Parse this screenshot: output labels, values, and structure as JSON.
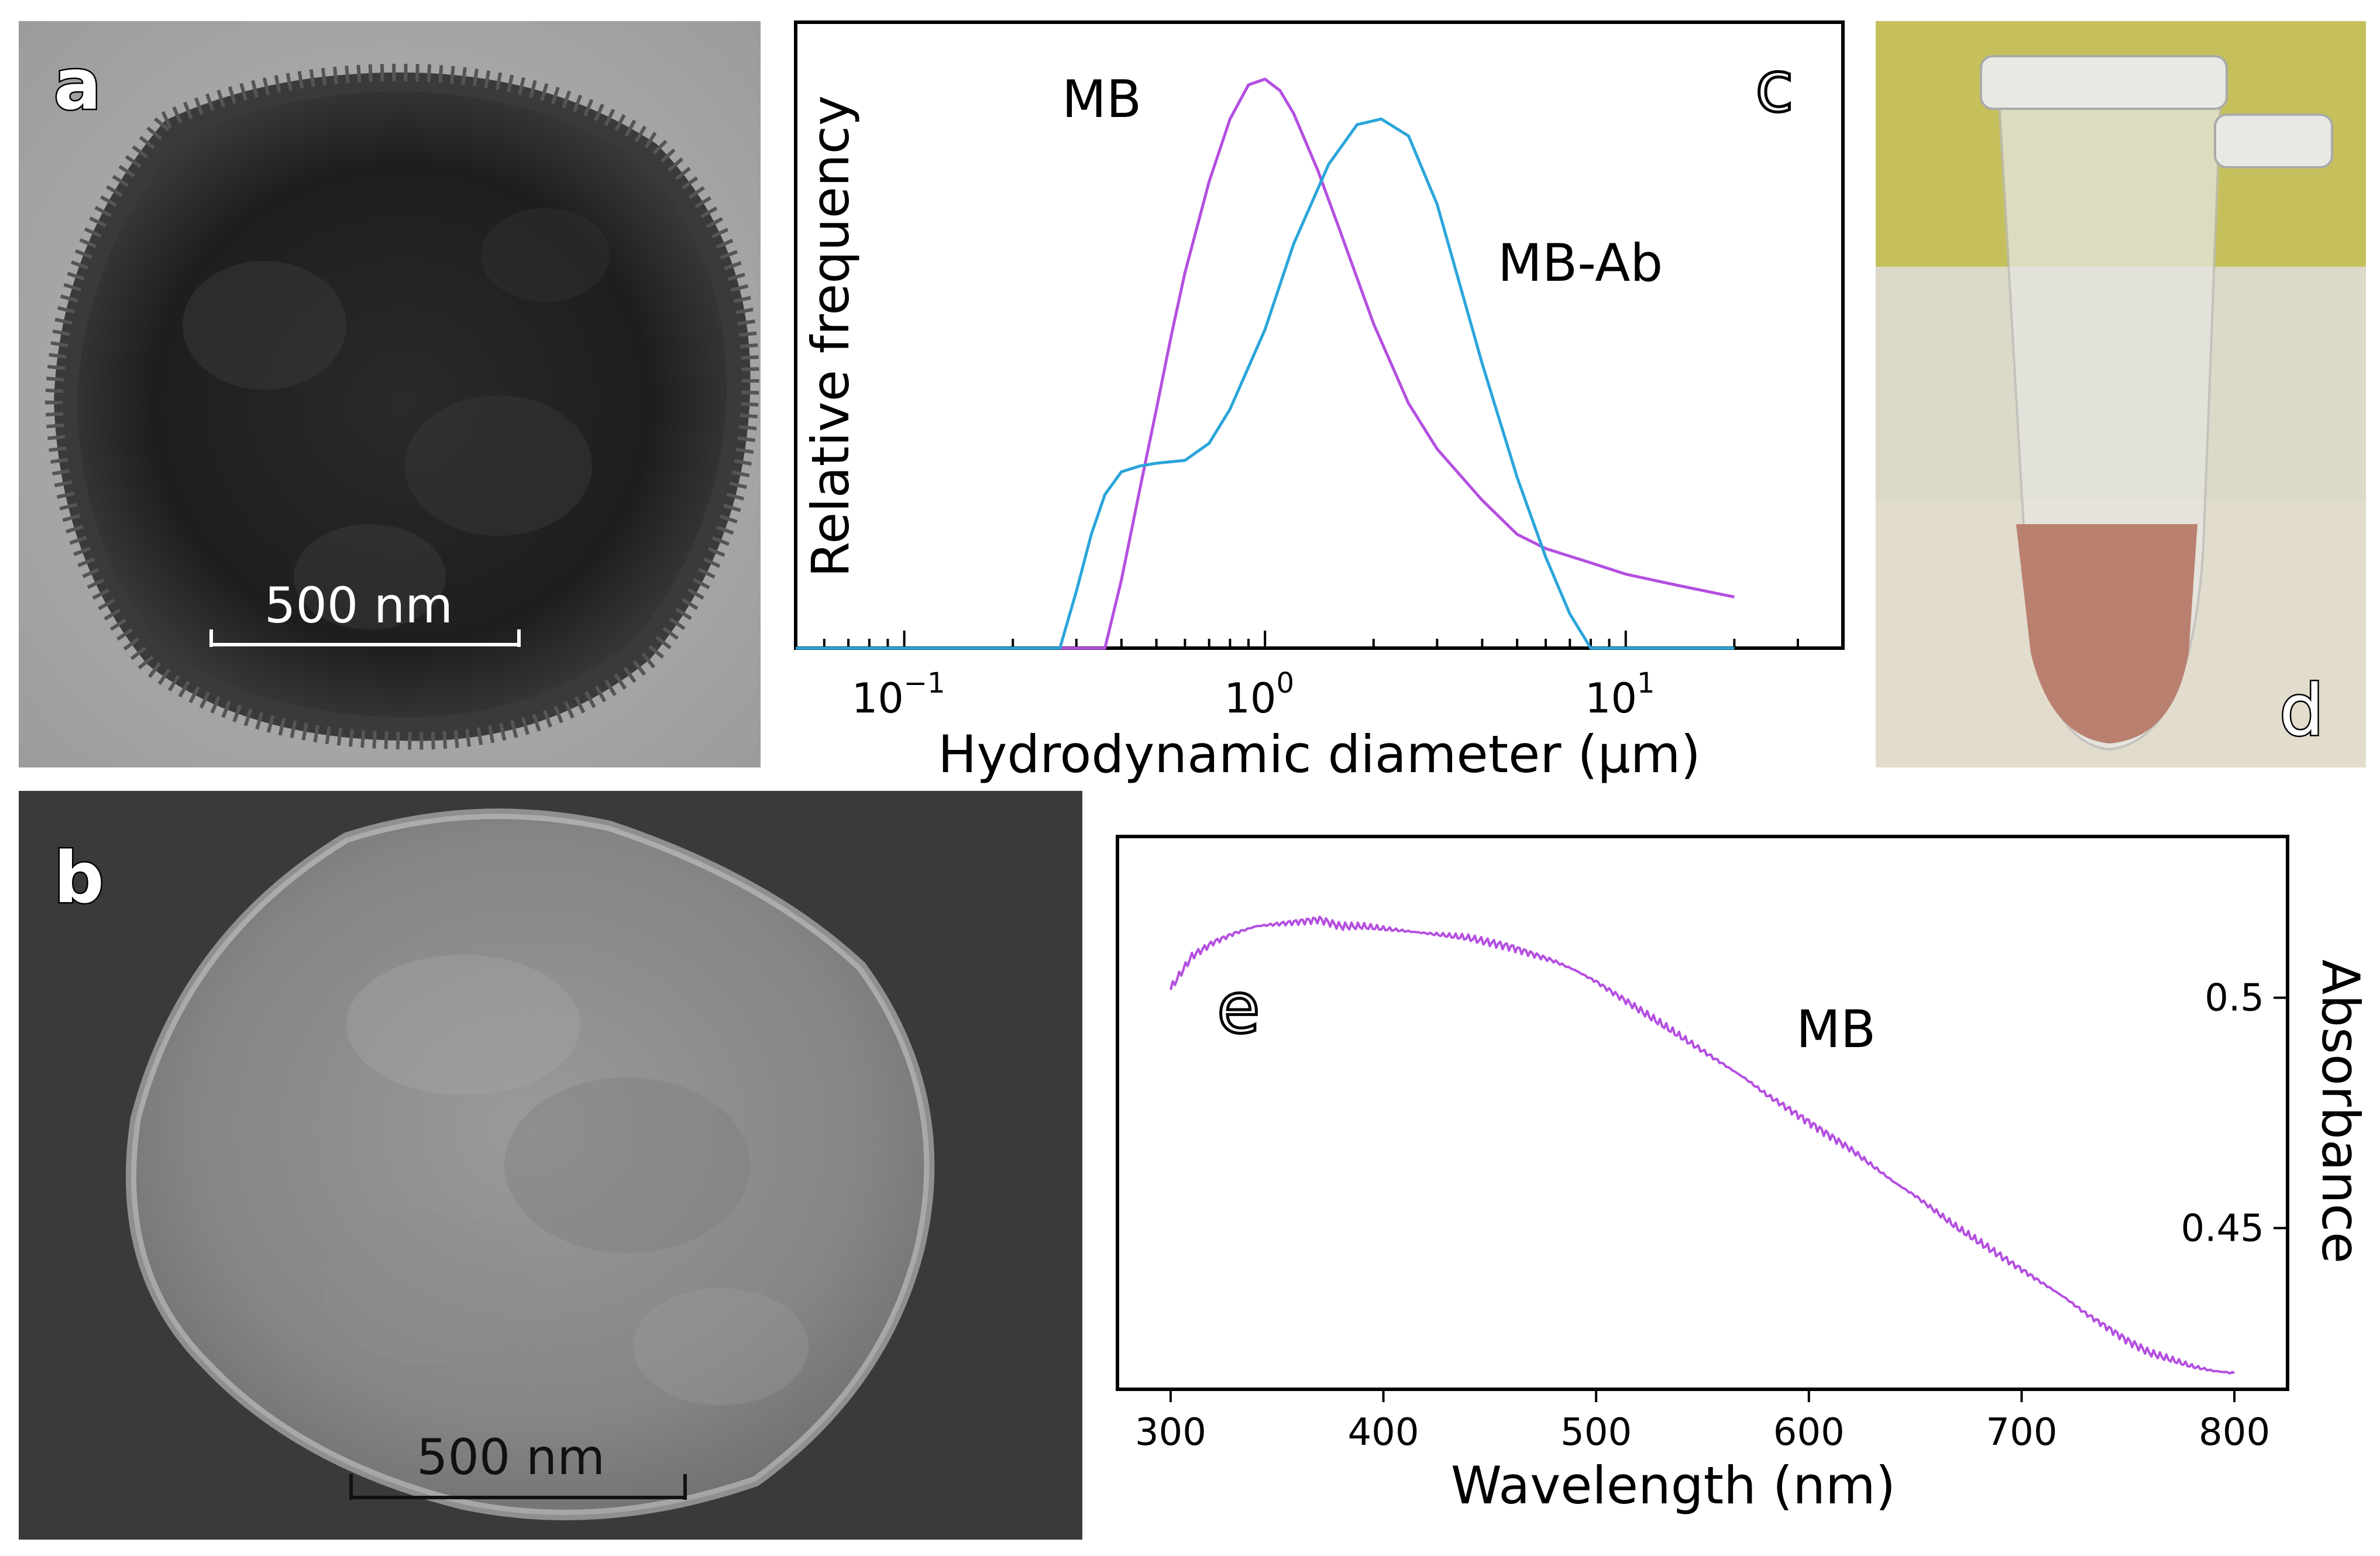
{
  "panels": {
    "a": {
      "letter": "a",
      "scale_label": "500 nm"
    },
    "b": {
      "letter": "b",
      "scale_label": "500 nm"
    },
    "d": {
      "letter": "d"
    }
  },
  "colors": {
    "mb": "#b44fe0",
    "mb_ab": "#2aa5da"
  },
  "chart_data": [
    {
      "panel": "c",
      "type": "line",
      "letter": "c",
      "xlabel": "Hydrodynamic diameter (µm)",
      "ylabel": "Relative frequency",
      "x_scale": "log",
      "xlim": [
        0.05,
        40
      ],
      "ylim": [
        0,
        1.1
      ],
      "x_ticks": [
        0.1,
        1,
        10
      ],
      "x_tick_labels": [
        "10",
        "10",
        "10"
      ],
      "x_tick_exponents": [
        "−1",
        "0",
        "1"
      ],
      "annotations": [
        "MB",
        "MB-Ab"
      ],
      "series": [
        {
          "name": "MB",
          "color": "#b44fe0",
          "x": [
            0.05,
            0.36,
            0.4,
            0.45,
            0.5,
            0.55,
            0.6,
            0.7,
            0.8,
            0.9,
            1.0,
            1.1,
            1.2,
            1.4,
            1.6,
            2.0,
            2.5,
            3.0,
            4.0,
            5.0,
            6.0,
            8.0,
            10.0,
            14.0,
            20.0
          ],
          "y": [
            0.0,
            0.0,
            0.12,
            0.28,
            0.42,
            0.55,
            0.66,
            0.82,
            0.93,
            0.99,
            1.0,
            0.98,
            0.94,
            0.84,
            0.74,
            0.57,
            0.43,
            0.35,
            0.26,
            0.2,
            0.175,
            0.15,
            0.13,
            0.11,
            0.09
          ]
        },
        {
          "name": "MB-Ab",
          "color": "#2aa5da",
          "x": [
            0.05,
            0.27,
            0.3,
            0.33,
            0.36,
            0.4,
            0.45,
            0.5,
            0.6,
            0.7,
            0.8,
            1.0,
            1.2,
            1.5,
            1.8,
            2.1,
            2.5,
            3.0,
            3.5,
            4.0,
            5.0,
            6.0,
            7.0,
            8.0,
            20.0
          ],
          "y": [
            0.0,
            0.0,
            0.1,
            0.2,
            0.27,
            0.31,
            0.32,
            0.325,
            0.33,
            0.36,
            0.42,
            0.56,
            0.71,
            0.85,
            0.92,
            0.93,
            0.9,
            0.78,
            0.63,
            0.5,
            0.3,
            0.16,
            0.06,
            0.0,
            0.0
          ]
        }
      ]
    },
    {
      "panel": "e",
      "type": "line",
      "letter": "e",
      "xlabel": "Wavelength (nm)",
      "ylabel": "Absorbance",
      "xlim": [
        275,
        825
      ],
      "ylim": [
        0.415,
        0.535
      ],
      "x_ticks": [
        300,
        400,
        500,
        600,
        700,
        800
      ],
      "x_tick_labels": [
        "300",
        "400",
        "500",
        "600",
        "700",
        "800"
      ],
      "y_ticks": [
        0.45,
        0.5
      ],
      "y_tick_labels": [
        "0.45",
        "0.5"
      ],
      "y_axis_side": "right",
      "annotations": [
        "MB"
      ],
      "series": [
        {
          "name": "MB",
          "color": "#b44fe0",
          "x": [
            300,
            310,
            320,
            330,
            340,
            350,
            360,
            370,
            380,
            390,
            400,
            410,
            420,
            430,
            440,
            450,
            460,
            470,
            480,
            490,
            500,
            510,
            520,
            530,
            540,
            550,
            560,
            570,
            580,
            590,
            600,
            610,
            620,
            630,
            640,
            650,
            660,
            670,
            680,
            690,
            700,
            710,
            720,
            730,
            740,
            750,
            760,
            770,
            780,
            790,
            800
          ],
          "y": [
            0.502,
            0.509,
            0.512,
            0.514,
            0.5155,
            0.516,
            0.5165,
            0.517,
            0.5155,
            0.5155,
            0.515,
            0.5145,
            0.514,
            0.5135,
            0.513,
            0.512,
            0.511,
            0.5095,
            0.508,
            0.506,
            0.5035,
            0.5005,
            0.4975,
            0.4945,
            0.4915,
            0.4885,
            0.4855,
            0.4825,
            0.479,
            0.476,
            0.473,
            0.47,
            0.467,
            0.4635,
            0.46,
            0.457,
            0.4535,
            0.45,
            0.447,
            0.444,
            0.441,
            0.438,
            0.435,
            0.4315,
            0.4285,
            0.4255,
            0.423,
            0.4215,
            0.42,
            0.419,
            0.4185
          ]
        }
      ]
    }
  ]
}
